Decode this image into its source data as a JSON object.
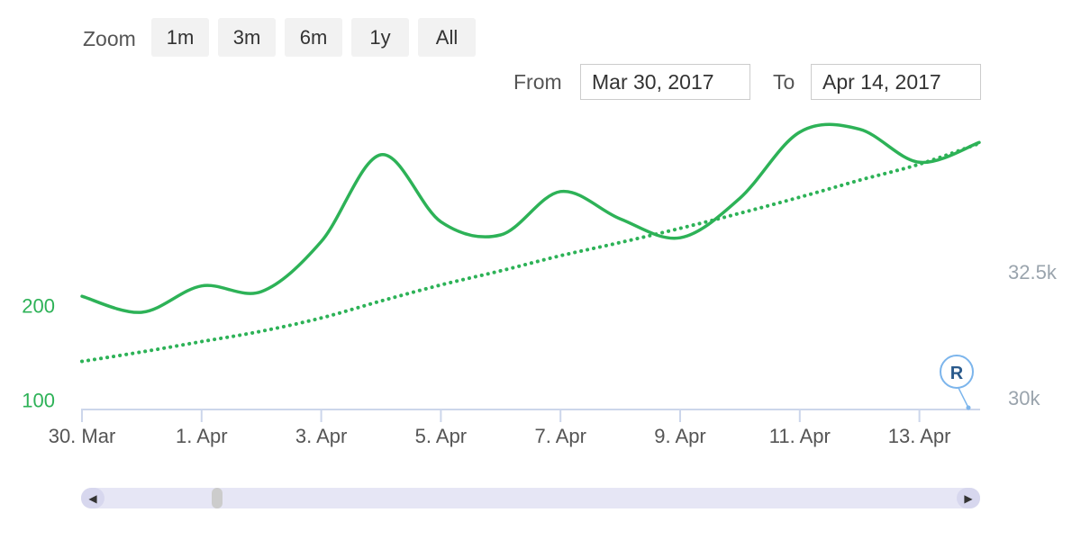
{
  "zoom": {
    "label": "Zoom",
    "buttons": [
      "1m",
      "3m",
      "6m",
      "1y",
      "All"
    ]
  },
  "range": {
    "from_label": "From",
    "from_value": "Mar 30, 2017",
    "to_label": "To",
    "to_value": "Apr 14, 2017"
  },
  "marker": {
    "label": "R"
  },
  "navigator": {
    "left_arrow": "◀",
    "right_arrow": "▶"
  },
  "colors": {
    "series": "#2db257",
    "axis_text": "#555555",
    "right_axis_text": "#9aa4ad",
    "axis_line": "#ccd6eb",
    "marker_stroke": "#7cb5ec",
    "marker_text": "#2a5a8c"
  },
  "chart_data": {
    "type": "line",
    "title": "",
    "xlabel": "",
    "ylabel": "",
    "x_range": [
      "2017-03-30",
      "2017-04-14"
    ],
    "x_ticks": [
      {
        "date": "2017-03-30",
        "label": "30. Mar"
      },
      {
        "date": "2017-04-01",
        "label": "1. Apr"
      },
      {
        "date": "2017-04-03",
        "label": "3. Apr"
      },
      {
        "date": "2017-04-05",
        "label": "5. Apr"
      },
      {
        "date": "2017-04-07",
        "label": "7. Apr"
      },
      {
        "date": "2017-04-09",
        "label": "9. Apr"
      },
      {
        "date": "2017-04-11",
        "label": "11. Apr"
      },
      {
        "date": "2017-04-13",
        "label": "13. Apr"
      }
    ],
    "y_left": {
      "ticks": [
        100,
        200
      ],
      "range": [
        90,
        400
      ]
    },
    "y_right": {
      "ticks": [
        30000,
        32500
      ],
      "tick_labels": [
        "30k",
        "32.5k"
      ],
      "range": [
        30000,
        35800
      ]
    },
    "series": [
      {
        "style": "solid",
        "axis": "left",
        "points": [
          [
            "2017-03-30",
            210
          ],
          [
            "2017-03-31",
            193
          ],
          [
            "2017-04-01",
            221
          ],
          [
            "2017-04-02",
            215
          ],
          [
            "2017-04-03",
            268
          ],
          [
            "2017-04-04",
            360
          ],
          [
            "2017-04-05",
            289
          ],
          [
            "2017-04-06",
            275
          ],
          [
            "2017-04-07",
            321
          ],
          [
            "2017-04-08",
            292
          ],
          [
            "2017-04-09",
            272
          ],
          [
            "2017-04-10",
            314
          ],
          [
            "2017-04-11",
            384
          ],
          [
            "2017-04-12",
            387
          ],
          [
            "2017-04-13",
            352
          ],
          [
            "2017-04-14",
            373
          ]
        ]
      },
      {
        "style": "dotted",
        "axis": "left",
        "points": [
          [
            "2017-03-30",
            141
          ],
          [
            "2017-03-31",
            151
          ],
          [
            "2017-04-01",
            162
          ],
          [
            "2017-04-02",
            173
          ],
          [
            "2017-04-03",
            187
          ],
          [
            "2017-04-04",
            205
          ],
          [
            "2017-04-05",
            222
          ],
          [
            "2017-04-06",
            237
          ],
          [
            "2017-04-07",
            253
          ],
          [
            "2017-04-08",
            267
          ],
          [
            "2017-04-09",
            282
          ],
          [
            "2017-04-10",
            298
          ],
          [
            "2017-04-11",
            315
          ],
          [
            "2017-04-12",
            333
          ],
          [
            "2017-04-13",
            350
          ],
          [
            "2017-04-14",
            372
          ]
        ]
      }
    ]
  }
}
